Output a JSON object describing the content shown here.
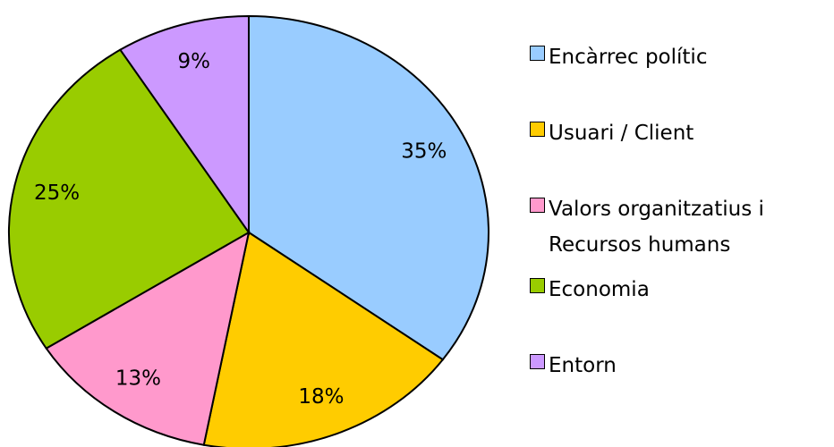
{
  "chart_data": {
    "type": "pie",
    "categories": [
      "Encàrrec polític",
      "Usuari / Client",
      "Valors organitzatius i Recursos humans",
      "Economia",
      "Entorn"
    ],
    "values": [
      35,
      18,
      13,
      25,
      9
    ],
    "value_labels": [
      "35%",
      "18%",
      "13%",
      "25%",
      "9%"
    ],
    "colors": [
      "#99ccff",
      "#ffcc00",
      "#ff99cc",
      "#99cc00",
      "#cc99ff"
    ]
  }
}
